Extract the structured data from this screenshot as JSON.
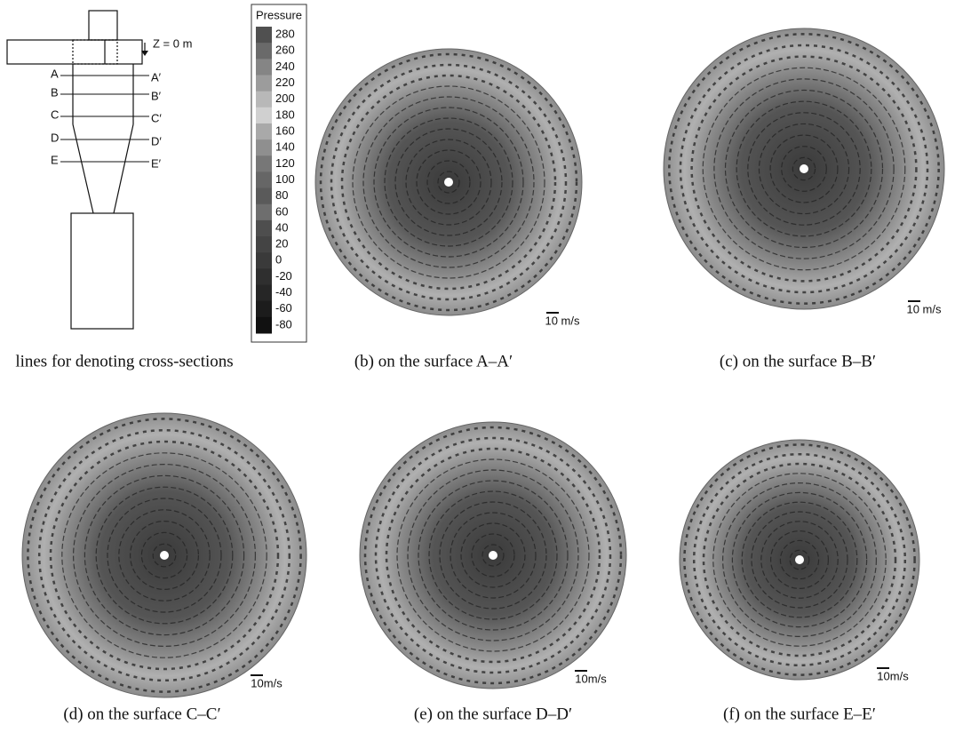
{
  "schematic": {
    "z_label": "Z = 0 m",
    "sections": [
      {
        "left": "A",
        "right": "A′"
      },
      {
        "left": "B",
        "right": "B′"
      },
      {
        "left": "C",
        "right": "C′"
      },
      {
        "left": "D",
        "right": "D′"
      },
      {
        "left": "E",
        "right": "E′"
      }
    ]
  },
  "colorbar": {
    "title": "Pressure",
    "ticks": [
      280,
      260,
      240,
      220,
      200,
      180,
      160,
      140,
      120,
      100,
      80,
      60,
      40,
      20,
      0,
      -20,
      -40,
      -60,
      -80
    ]
  },
  "panels": [
    {
      "caption": "lines for denoting cross-sections"
    },
    {
      "caption": "(b) on the surface A–A′",
      "scale_label": "10 m/s"
    },
    {
      "caption": "(c) on the surface B–B′",
      "scale_label": "10 m/s"
    },
    {
      "caption": "(d) on the surface C–C′",
      "scale_label": "10m/s"
    },
    {
      "caption": "(e) on the surface D–D′",
      "scale_label": "10m/s"
    },
    {
      "caption": "(f) on the surface E–E′",
      "scale_label": "10m/s"
    }
  ]
}
